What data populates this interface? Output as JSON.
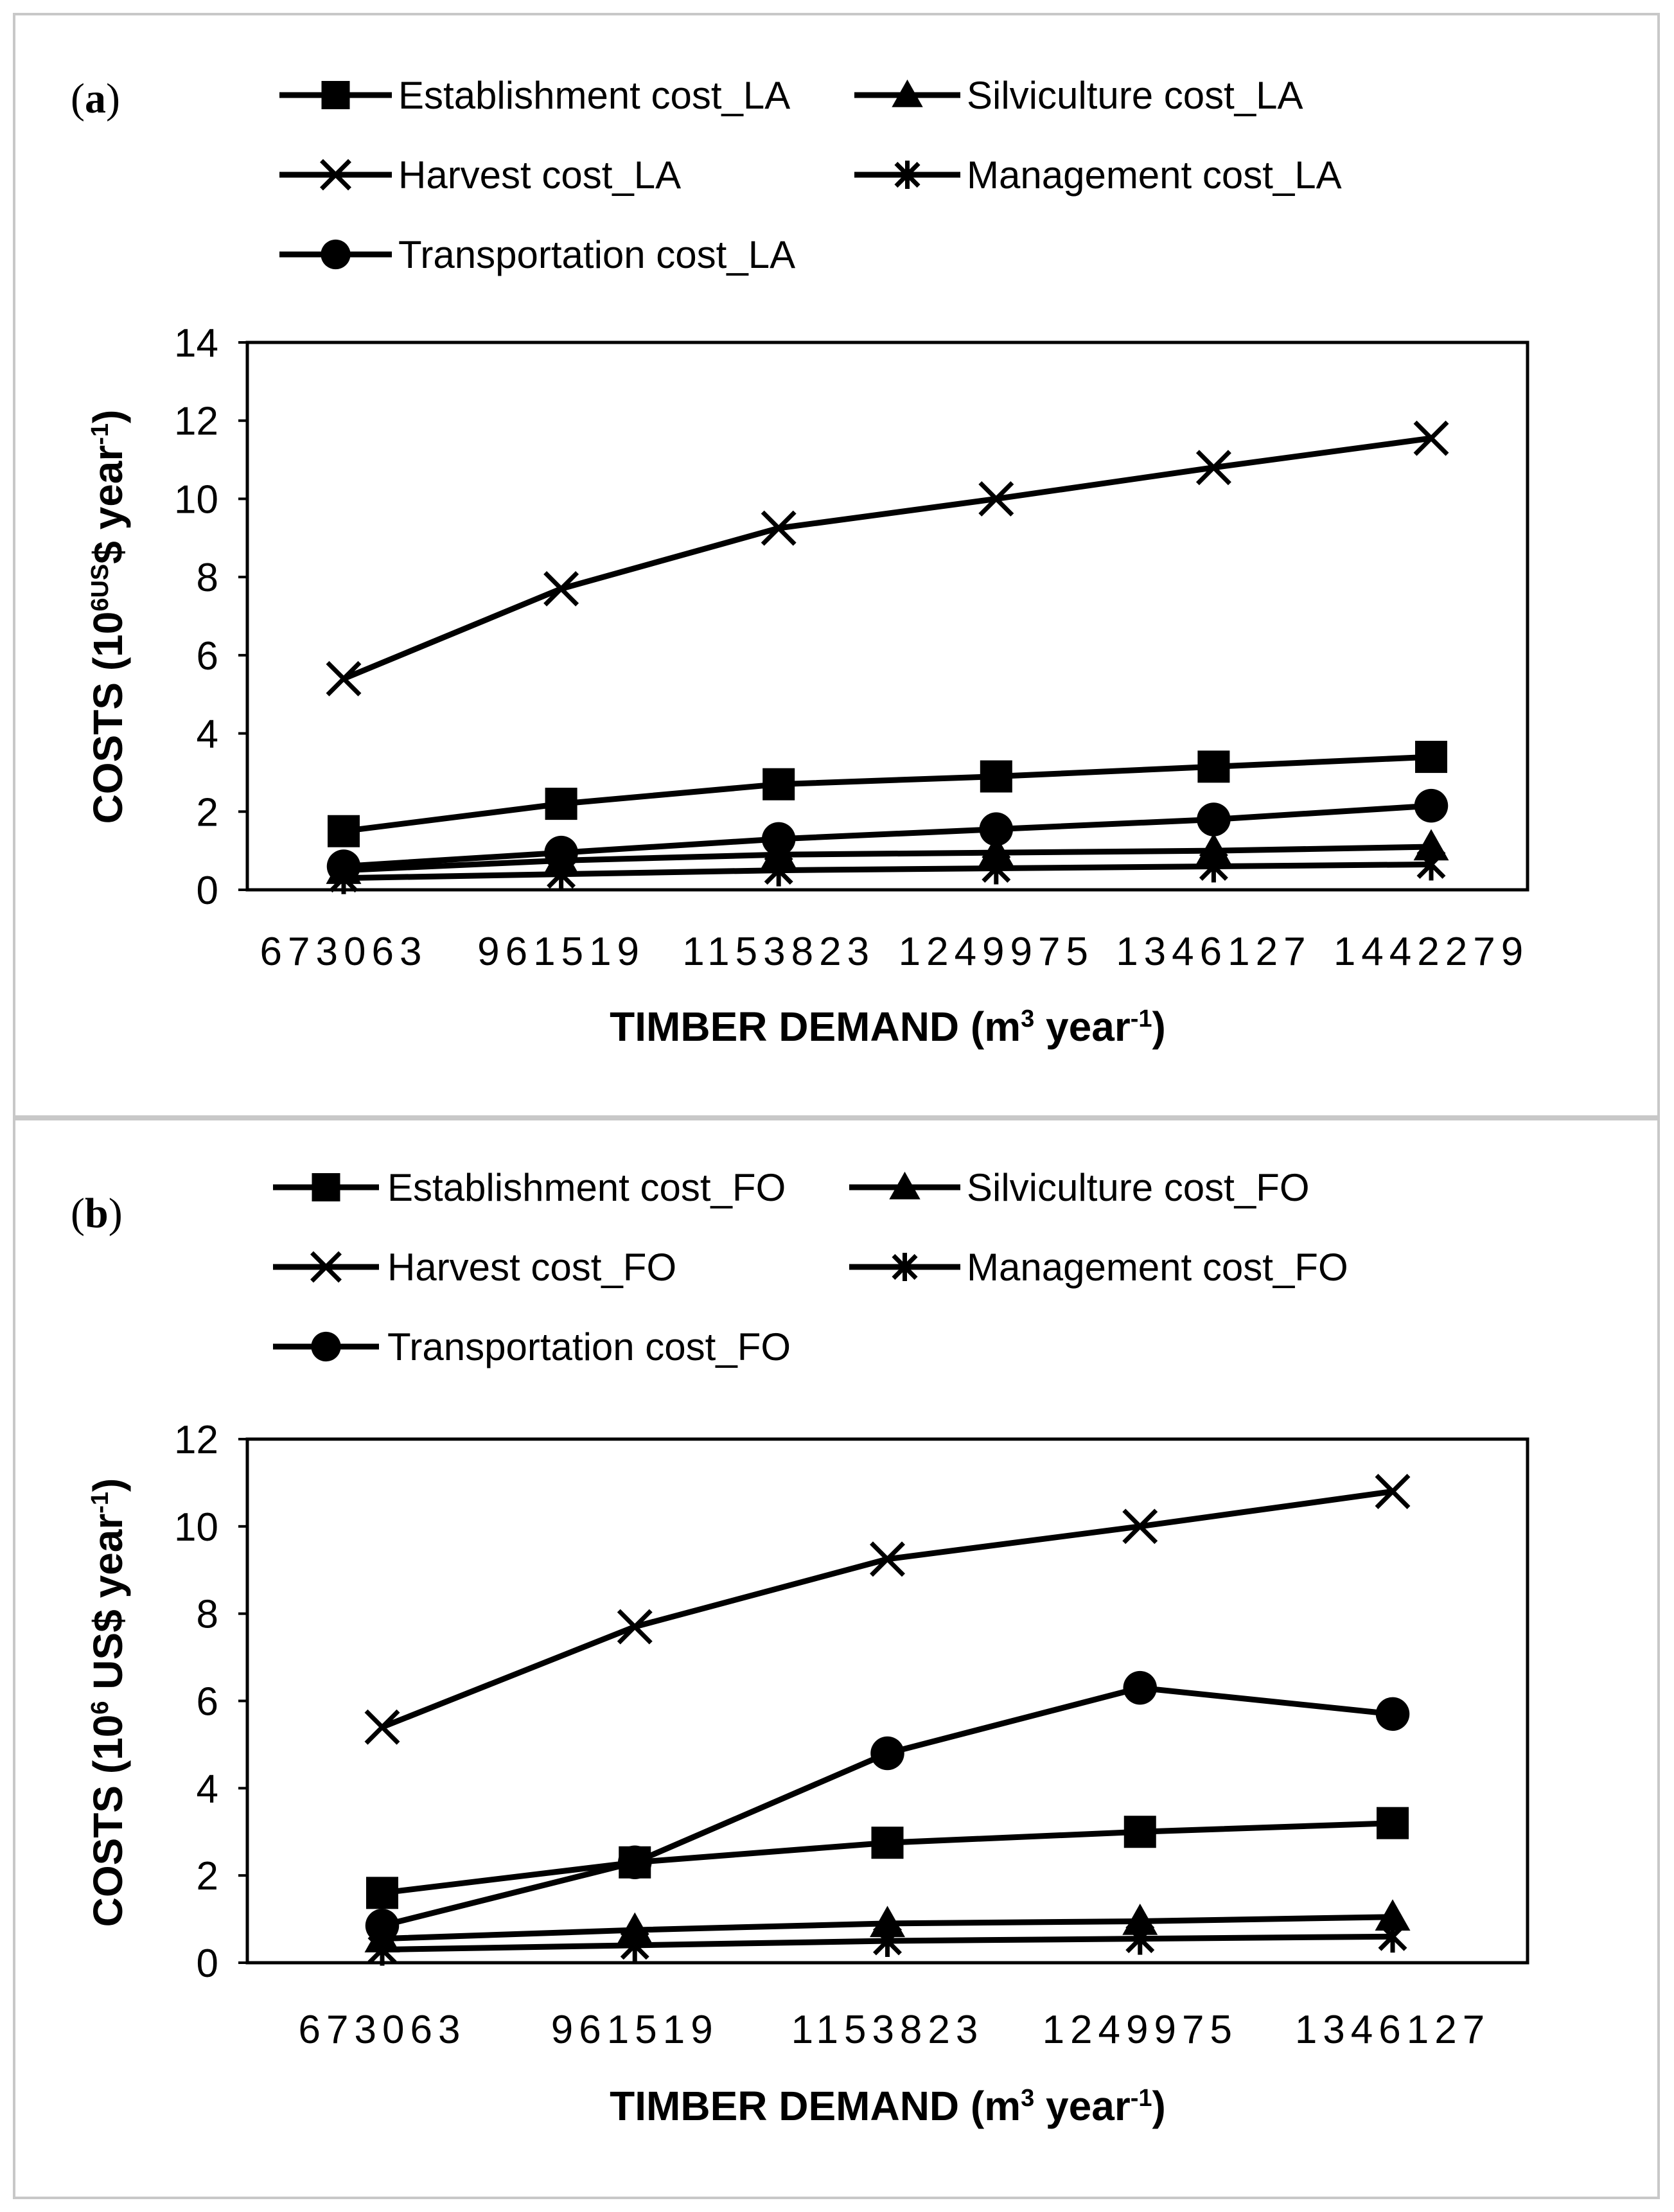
{
  "chart_data": [
    {
      "type": "line",
      "panel_label": {
        "open": "(",
        "letter": "a",
        "close": ")"
      },
      "categories": [
        "673063",
        "961519",
        "1153823",
        "1249975",
        "1346127",
        "1442279"
      ],
      "xlabel": {
        "main": "TIMBER DEMAND (m",
        "sup1": "3",
        "mid": " year",
        "sup2": "-1",
        "end": ")"
      },
      "ylabel": {
        "main": "COSTS (10",
        "sup1": "6US",
        "mid": "$ year",
        "sup2": "-1",
        "end": ")"
      },
      "ylim": [
        0,
        14
      ],
      "yticks": [
        0,
        2,
        4,
        6,
        8,
        10,
        12,
        14
      ],
      "grid": false,
      "legend_position": "top",
      "series": [
        {
          "name": "Establishment cost_LA",
          "marker": "square",
          "values": [
            1.5,
            2.2,
            2.7,
            2.9,
            3.15,
            3.4
          ]
        },
        {
          "name": "Silviculture cost_LA",
          "marker": "triangle",
          "values": [
            0.5,
            0.75,
            0.9,
            0.95,
            1.0,
            1.1
          ]
        },
        {
          "name": "Harvest cost_LA",
          "marker": "x",
          "values": [
            5.4,
            7.7,
            9.25,
            10.0,
            10.8,
            11.55
          ]
        },
        {
          "name": "Management cost_LA",
          "marker": "star",
          "values": [
            0.3,
            0.4,
            0.5,
            0.55,
            0.6,
            0.65
          ]
        },
        {
          "name": "Transportation cost_LA",
          "marker": "circle",
          "values": [
            0.6,
            0.95,
            1.3,
            1.55,
            1.8,
            2.15
          ]
        }
      ]
    },
    {
      "type": "line",
      "panel_label": {
        "open": "(",
        "letter": "b",
        "close": ")"
      },
      "categories": [
        "673063",
        "961519",
        "1153823",
        "1249975",
        "1346127"
      ],
      "xlabel": {
        "main": "TIMBER DEMAND (m",
        "sup1": "3",
        "mid": " year",
        "sup2": "-1",
        "end": ")"
      },
      "ylabel": {
        "main": "COSTS (10",
        "sup1": "6",
        "mid": " US$ year",
        "sup2": "-1",
        "end": ")"
      },
      "ylim": [
        0,
        12
      ],
      "yticks": [
        0,
        2,
        4,
        6,
        8,
        10,
        12
      ],
      "grid": false,
      "legend_position": "top",
      "series": [
        {
          "name": "Establishment cost_FO",
          "marker": "square",
          "values": [
            1.6,
            2.3,
            2.75,
            3.0,
            3.2
          ]
        },
        {
          "name": "Silviculture cost_FO",
          "marker": "triangle",
          "values": [
            0.55,
            0.75,
            0.9,
            0.95,
            1.05
          ]
        },
        {
          "name": "Harvest cost_FO",
          "marker": "x",
          "values": [
            5.4,
            7.7,
            9.25,
            10.0,
            10.8
          ]
        },
        {
          "name": "Management cost_FO",
          "marker": "star",
          "values": [
            0.3,
            0.4,
            0.5,
            0.55,
            0.6
          ]
        },
        {
          "name": "Transportation cost_FO",
          "marker": "circle",
          "values": [
            0.85,
            2.3,
            4.8,
            6.3,
            5.7
          ]
        }
      ]
    }
  ]
}
